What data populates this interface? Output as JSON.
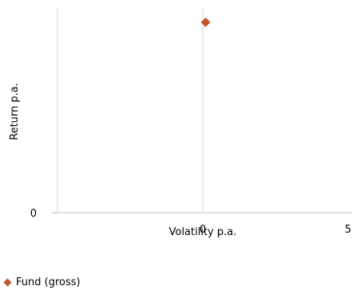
{
  "chart_data": {
    "type": "scatter",
    "xlabel": "Volatility p.a.",
    "ylabel": "Return p.a.",
    "x_ticks": [
      "0",
      "5"
    ],
    "y_ticks": [
      "0"
    ],
    "xlim": [
      -5,
      5
    ],
    "ylim": [
      0,
      5
    ],
    "grid": false,
    "legend_placement": "bottom-left",
    "series": [
      {
        "name": "Fund (gross)",
        "color": "#c0562a",
        "marker": "diamond",
        "points": [
          {
            "x": 0.1,
            "y": 4.65
          }
        ]
      }
    ]
  }
}
